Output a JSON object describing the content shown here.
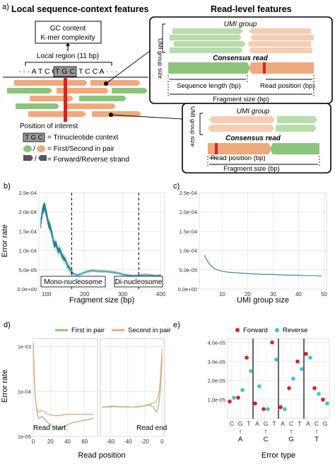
{
  "panel_a": {
    "tag": "a)",
    "title_left": "Local sequence-context features",
    "title_right": "Read-level features",
    "gc_line1": "GC content",
    "gc_line2": "K-mer complexity",
    "local_region": "Local region (11 bp)",
    "seq_prefix": "· · · A T C G",
    "seq_tri": "T G C",
    "seq_suffix": "T C C A · · ·",
    "poi": "Position of interest",
    "legend_tri_box": "T G C",
    "legend_tri": "= Trinucleotide context",
    "legend_pair": "= First/Second in pair",
    "legend_strand": "= Forward/Reverse strand",
    "box1": {
      "umi_group": "UMI group",
      "umi_size": "UMI group size",
      "consensus": "Consensus read",
      "seq_len": "Sequence length (bp)",
      "read_pos": "Read position (bp)",
      "frag": "Fragment size (bp)"
    },
    "box2": {
      "umi_group": "UMI group",
      "umi_size": "UMI group size",
      "consensus": "Consensus read",
      "read_pos": "Read position (bp)",
      "frag": "Fragment size (bp)"
    }
  },
  "colors": {
    "green": "#8cc47b",
    "orange": "#f0a97c",
    "red": "#d92323",
    "teal": "#2a7f93",
    "cyan": "#3fc4dc",
    "grey": "#888888"
  },
  "chart_data": [
    {
      "panel": "b)",
      "type": "line",
      "xlabel": "Fragment size (bp)",
      "ylabel": "Error rate",
      "xlim": [
        80,
        410
      ],
      "ylim": [
        0,
        0.00025
      ],
      "xticks": [
        "100",
        "200",
        "300",
        "400"
      ],
      "yticks": [
        "0.0e+00",
        "5.0e-05",
        "1.0e-04",
        "1.5e-04",
        "2.0e-04",
        "2.5e-04"
      ],
      "vlines": [
        166,
        342
      ],
      "annotations": [
        "Mono-nucleosome",
        "Di-nucleosome"
      ],
      "series": [
        {
          "x": [
            85,
            90,
            95,
            100,
            105,
            110,
            115,
            120,
            125,
            130,
            135,
            140,
            145,
            150,
            155,
            160,
            165,
            170,
            180,
            190,
            200,
            210,
            220,
            230,
            240,
            250,
            260,
            270,
            280,
            290,
            300,
            310,
            320,
            330,
            340,
            350,
            360,
            370,
            380,
            390,
            400
          ],
          "y": [
            0.00017,
            0.000205,
            0.000215,
            0.000195,
            0.00017,
            0.00016,
            0.00014,
            0.000115,
            0.000118,
            0.0001,
            0.000102,
            8.8e-05,
            8e-05,
            7.5e-05,
            6e-05,
            5.5e-05,
            4.5e-05,
            4e-05,
            3.6e-05,
            3.9e-05,
            4.3e-05,
            4.6e-05,
            4.8e-05,
            4.7e-05,
            4.6e-05,
            4.6e-05,
            4.5e-05,
            4.4e-05,
            4.3e-05,
            4.1e-05,
            3.8e-05,
            3.6e-05,
            3.5e-05,
            3.4e-05,
            3.5e-05,
            3.6e-05,
            3.7e-05,
            3.6e-05,
            3.5e-05,
            3.4e-05,
            3.6e-05
          ]
        }
      ]
    },
    {
      "panel": "c)",
      "type": "line",
      "xlabel": "UMI group size",
      "xlim": [
        1,
        51
      ],
      "ylim": [
        0,
        0.00025
      ],
      "xticks": [
        "10",
        "20",
        "30",
        "40",
        "50"
      ],
      "yticks": [
        "0.0e+00",
        "5.0e-05",
        "1.0e-04",
        "1.5e-04",
        "2.0e-04",
        "2.5e-04"
      ],
      "series": [
        {
          "x": [
            3,
            4,
            5,
            6,
            7,
            8,
            9,
            10,
            12,
            14,
            16,
            18,
            20,
            22,
            24,
            26,
            28,
            30,
            32,
            34,
            36,
            38,
            40,
            42,
            44,
            46,
            48,
            49
          ],
          "y": [
            8.8e-05,
            7.5e-05,
            6.5e-05,
            5.8e-05,
            5.3e-05,
            5e-05,
            4.8e-05,
            4.6e-05,
            4.4e-05,
            4.3e-05,
            4.2e-05,
            4.1e-05,
            4e-05,
            3.9e-05,
            3.9e-05,
            3.8e-05,
            3.8e-05,
            3.8e-05,
            3.7e-05,
            3.7e-05,
            3.6e-05,
            3.6e-05,
            3.6e-05,
            3.5e-05,
            3.5e-05,
            3.5e-05,
            3.4e-05,
            3.4e-05
          ]
        }
      ]
    },
    {
      "panel": "d)",
      "type": "line",
      "xlabel": "Read position",
      "ylabel": "Error rate",
      "legend": [
        "First in pair",
        "Second in pair"
      ],
      "yticks": [
        "1e-05",
        "1e-04",
        "1e-03"
      ],
      "ylog": true,
      "ylim": [
        1e-05,
        0.0015
      ],
      "facets": [
        {
          "label": "Read start",
          "xlim": [
            0,
            75
          ],
          "xticks": [
            "0",
            "20",
            "40",
            "60"
          ],
          "series": [
            {
              "name": "First in pair",
              "x": [
                0,
                1,
                2,
                3,
                4,
                5,
                7,
                10,
                15,
                20,
                25,
                30,
                35,
                40,
                45,
                50,
                55,
                60,
                65,
                70
              ],
              "y": [
                0.0012,
                0.0003,
                0.0001,
                6e-05,
                4e-05,
                3e-05,
                2.5e-05,
                2.8e-05,
                2.2e-05,
                1.8e-05,
                1.6e-05,
                1.5e-05,
                1.6e-05,
                1.8e-05,
                2e-05,
                2.1e-05,
                2.2e-05,
                2.3e-05,
                2.4e-05,
                2.5e-05
              ]
            },
            {
              "name": "Second in pair",
              "x": [
                0,
                1,
                2,
                3,
                4,
                5,
                7,
                10,
                15,
                20,
                25,
                30,
                35,
                40,
                45,
                50,
                55,
                60,
                65,
                70
              ],
              "y": [
                0.0008,
                0.00025,
                0.0001,
                6e-05,
                4.5e-05,
                3.8e-05,
                3.5e-05,
                3.8e-05,
                3.3e-05,
                3e-05,
                2.9e-05,
                2.9e-05,
                3e-05,
                3.1e-05,
                3.1e-05,
                3.1e-05,
                3.1e-05,
                3.1e-05,
                3.1e-05,
                3e-05
              ]
            }
          ]
        },
        {
          "label": "Read end",
          "xlim": [
            -72,
            3
          ],
          "xticks": [
            "-60",
            "-40",
            "-20",
            "0"
          ],
          "series": [
            {
              "name": "First in pair",
              "x": [
                -70,
                -65,
                -60,
                -55,
                -50,
                -45,
                -40,
                -35,
                -30,
                -25,
                -20,
                -15,
                -10,
                -7,
                -5,
                -3,
                -2,
                -1,
                0
              ],
              "y": [
                4.5e-05,
                4.6e-05,
                4.7e-05,
                4.7e-05,
                4.6e-05,
                4.6e-05,
                4.6e-05,
                4.5e-05,
                4.5e-05,
                4.6e-05,
                4.8e-05,
                5e-05,
                4.5e-05,
                3.5e-05,
                4e-05,
                7e-05,
                0.00012,
                0.00025,
                0.0006
              ]
            },
            {
              "name": "Second in pair",
              "x": [
                -70,
                -65,
                -60,
                -55,
                -50,
                -45,
                -40,
                -35,
                -30,
                -25,
                -20,
                -15,
                -10,
                -7,
                -5,
                -3,
                -2,
                -1,
                0
              ],
              "y": [
                4.4e-05,
                4.5e-05,
                4.5e-05,
                4.6e-05,
                4.5e-05,
                4.5e-05,
                4.5e-05,
                4.5e-05,
                4.6e-05,
                4.7e-05,
                4.9e-05,
                5.2e-05,
                5.5e-05,
                6e-05,
                7.5e-05,
                0.00011,
                0.0002,
                0.0004,
                0.0009
              ]
            }
          ]
        }
      ]
    },
    {
      "panel": "e)",
      "type": "scatter",
      "xlabel": "Error type",
      "legend": [
        "Forward",
        "Reverse"
      ],
      "ylim": [
        0,
        4.2e-05
      ],
      "yticks": [
        "1.0e-05",
        "2.0e-05",
        "3.0e-05",
        "4.0e-05"
      ],
      "categories": [
        "C",
        "G",
        "T",
        "A",
        "G",
        "T",
        "A",
        "C",
        "T",
        "A",
        "C",
        "G"
      ],
      "groups": [
        "A",
        "C",
        "G",
        "T"
      ],
      "series": [
        {
          "name": "Forward",
          "values": [
            9e-06,
            1.1e-05,
            3.2e-05,
            8e-06,
            5e-06,
            4e-05,
            6e-06,
            1.6e-05,
            3e-05,
            3.4e-05,
            1.6e-05,
            1e-05
          ]
        },
        {
          "name": "Reverse",
          "values": [
            1.1e-05,
            1.5e-05,
            2.5e-05,
            1.7e-05,
            5e-06,
            3.1e-05,
            5e-06,
            2.1e-05,
            2.6e-05,
            3.2e-05,
            1.3e-05,
            8e-06
          ]
        }
      ]
    }
  ]
}
